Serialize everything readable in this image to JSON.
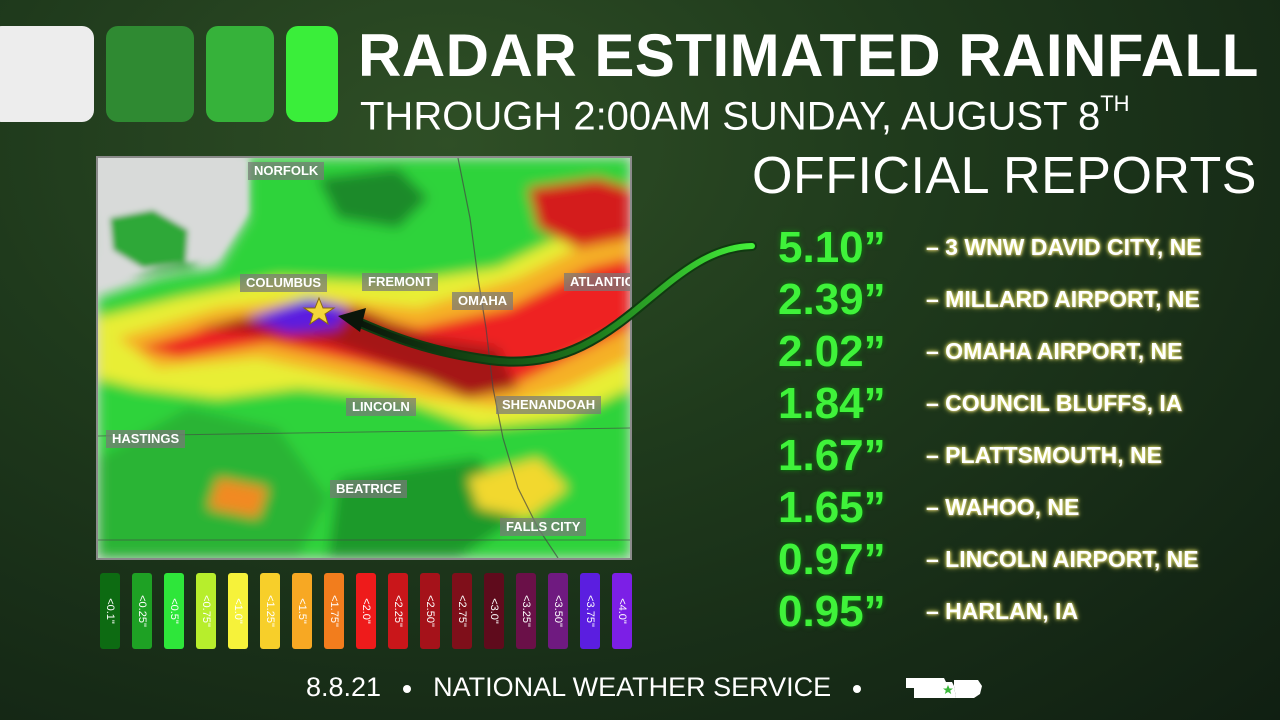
{
  "title": {
    "main": "RADAR ESTIMATED RAINFALL",
    "sub_prefix": "THROUGH 2:00AM SUNDAY, AUGUST 8",
    "sub_suffix": "TH"
  },
  "tiles": [
    {
      "color": "#ededed"
    },
    {
      "color": "#2f8a32"
    },
    {
      "color": "#36b23a"
    },
    {
      "color": "#3aee3a"
    }
  ],
  "reports": {
    "heading": "OFFICIAL REPORTS",
    "items": [
      {
        "value": "5.10”",
        "location": "– 3 WNW DAVID CITY, NE"
      },
      {
        "value": "2.39”",
        "location": "– MILLARD AIRPORT, NE"
      },
      {
        "value": "2.02”",
        "location": "– OMAHA AIRPORT, NE"
      },
      {
        "value": "1.84”",
        "location": "– COUNCIL BLUFFS, IA"
      },
      {
        "value": "1.67”",
        "location": "– PLATTSMOUTH, NE"
      },
      {
        "value": "1.65”",
        "location": "– WAHOO, NE"
      },
      {
        "value": "0.97”",
        "location": "– LINCOLN AIRPORT, NE"
      },
      {
        "value": "0.95”",
        "location": "– HARLAN, IA"
      }
    ]
  },
  "map": {
    "cities": {
      "norfolk": "NORFOLK",
      "columbus": "COLUMBUS",
      "fremont": "FREMONT",
      "omaha": "OMAHA",
      "atlantic": "ATLANTIC",
      "lincoln": "LINCOLN",
      "shenandoah": "SHENANDOAH",
      "hastings": "HASTINGS",
      "beatrice": "BEATRICE",
      "falls_city": "FALLS CITY"
    }
  },
  "legend": [
    {
      "label": "<0.1\"",
      "color": "#0d6b12"
    },
    {
      "label": "<0.25\"",
      "color": "#1ea124"
    },
    {
      "label": "<0.5\"",
      "color": "#2ee63a"
    },
    {
      "label": "<0.75\"",
      "color": "#b7ee2c"
    },
    {
      "label": "<1.0\"",
      "color": "#f6f23a"
    },
    {
      "label": "<1.25\"",
      "color": "#f7cf2a"
    },
    {
      "label": "<1.5\"",
      "color": "#f7a823"
    },
    {
      "label": "<1.75\"",
      "color": "#f27d1d"
    },
    {
      "label": "<2.0\"",
      "color": "#ee1b1b"
    },
    {
      "label": "<2.25\"",
      "color": "#c9161a"
    },
    {
      "label": "<2.50\"",
      "color": "#a5121a"
    },
    {
      "label": "<2.75\"",
      "color": "#7f0f1a"
    },
    {
      "label": "<3.0\"",
      "color": "#5f0b1c"
    },
    {
      "label": "<3.25\"",
      "color": "#6a1048"
    },
    {
      "label": "<3.50\"",
      "color": "#6f1a80"
    },
    {
      "label": "<3.75\"",
      "color": "#5b1ee0"
    },
    {
      "label": "<4.0\"",
      "color": "#7c1fe6"
    }
  ],
  "footer": {
    "date": "8.8.21",
    "agency": "NATIONAL WEATHER SERVICE"
  }
}
